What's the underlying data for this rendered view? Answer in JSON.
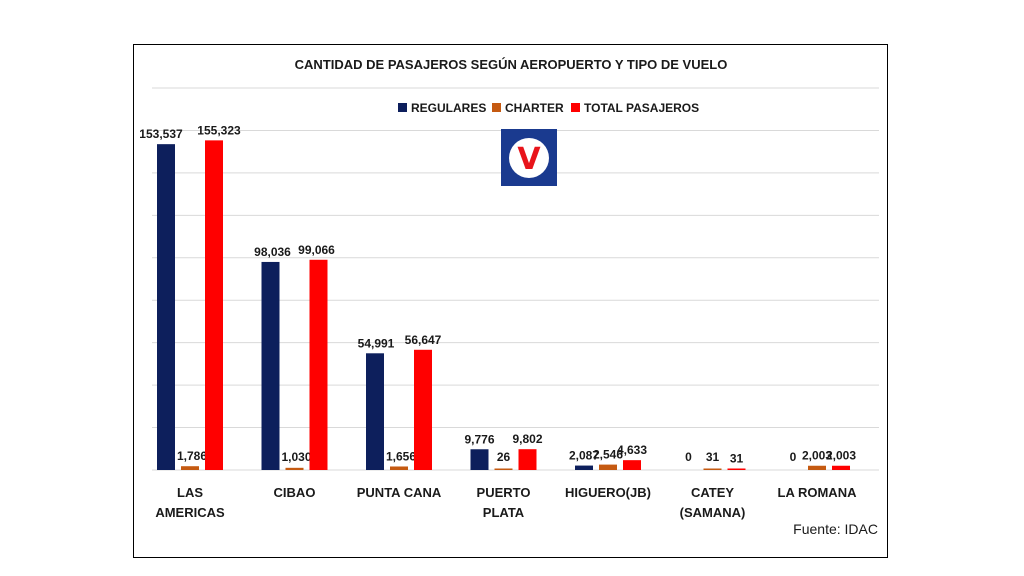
{
  "chart_data": {
    "type": "bar",
    "title": "CANTIDAD DE PASAJEROS SEGÚN AEROPUERTO  Y TIPO DE VUELO",
    "categories": [
      [
        "LAS",
        "AMERICAS"
      ],
      [
        "CIBAO"
      ],
      [
        "PUNTA CANA"
      ],
      [
        "PUERTO",
        "PLATA"
      ],
      [
        "HIGUERO(JB)"
      ],
      [
        "CATEY",
        "(SAMANA)"
      ],
      [
        "LA ROMANA"
      ]
    ],
    "series": [
      {
        "name": "REGULARES",
        "color": "#0d1f5c",
        "values": [
          153537,
          98036,
          54991,
          9776,
          2087,
          0,
          0
        ],
        "labels": [
          "153,537",
          "98,036",
          "54,991",
          "9,776",
          "2,087",
          "0",
          "0"
        ]
      },
      {
        "name": "CHARTER",
        "color": "#c55a11",
        "values": [
          1786,
          1030,
          1656,
          26,
          2546,
          31,
          2003
        ],
        "labels": [
          "1,786",
          "1,030",
          "1,656",
          "26",
          "2,546",
          "31",
          "2,003"
        ]
      },
      {
        "name": "TOTAL PASAJEROS",
        "color": "#ff0000",
        "values": [
          155323,
          99066,
          56647,
          9802,
          4633,
          31,
          2003
        ],
        "labels": [
          "155,323",
          "99,066",
          "56,647",
          "9,802",
          "4,633",
          "31",
          "2,003"
        ]
      }
    ],
    "ylim": [
      0,
      180000
    ],
    "grid": true,
    "legend_position": "top",
    "source": "Fuente: IDAC",
    "logo": {
      "letter": "V",
      "background": "#1a3a8f",
      "circle": "#ffffff",
      "letter_color": "#e8141b"
    }
  }
}
